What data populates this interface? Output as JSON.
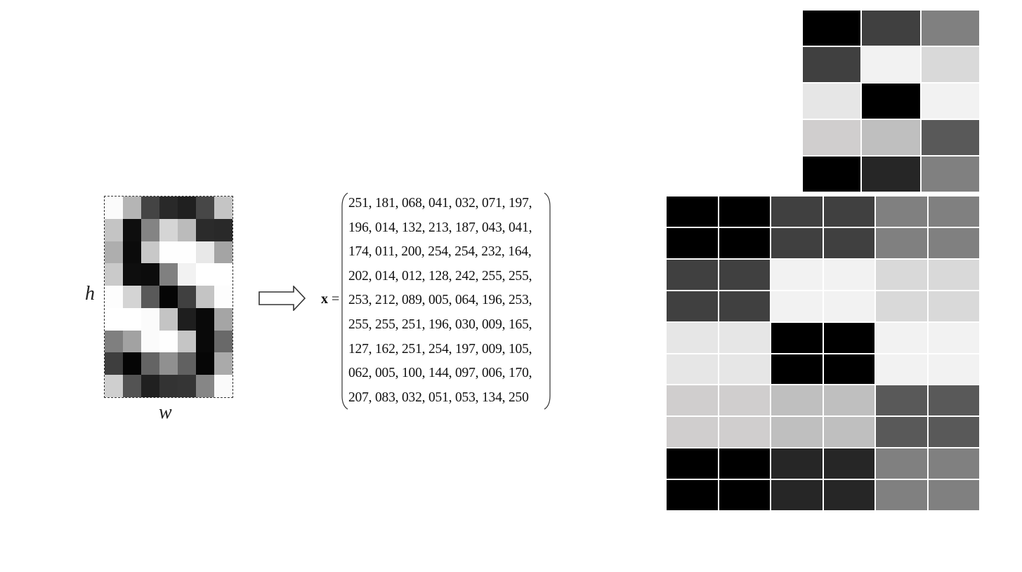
{
  "labels": {
    "h": "h",
    "w": "w",
    "x_symbol": "x",
    "equals": "="
  },
  "digit_pixels": [
    [
      251,
      181,
      68,
      41,
      32,
      71,
      197
    ],
    [
      196,
      14,
      132,
      213,
      187,
      43,
      41
    ],
    [
      174,
      11,
      200,
      254,
      254,
      232,
      164
    ],
    [
      202,
      14,
      12,
      128,
      242,
      255,
      255
    ],
    [
      253,
      212,
      89,
      5,
      64,
      196,
      253
    ],
    [
      255,
      255,
      251,
      196,
      30,
      9,
      165
    ],
    [
      127,
      162,
      251,
      254,
      197,
      9,
      105
    ],
    [
      62,
      5,
      100,
      144,
      97,
      6,
      170
    ],
    [
      207,
      83,
      32,
      51,
      53,
      134,
      250
    ]
  ],
  "vector_rows": [
    "251, 181, 068, 041, 032, 071, 197,",
    "196, 014, 132, 213, 187, 043, 041,",
    "174, 011, 200, 254, 254, 232, 164,",
    "202, 014, 012, 128, 242, 255, 255,",
    "253, 212, 089, 005, 064, 196, 253,",
    "255, 255, 251, 196, 030, 009, 165,",
    "127, 162, 251, 254, 197, 009, 105,",
    "062, 005, 100, 144, 097, 006, 170,",
    "207, 083, 032, 051, 053, 134, 250"
  ],
  "small_grid": [
    [
      "#000000",
      "#404040",
      "#808080"
    ],
    [
      "#404040",
      "#f2f2f2",
      "#d9d9d9"
    ],
    [
      "#e6e6e6",
      "#000000",
      "#f2f2f2"
    ],
    [
      "#d0cece",
      "#bfbfbf",
      "#595959"
    ],
    [
      "#000000",
      "#262626",
      "#808080"
    ]
  ],
  "large_grid_scale": 2
}
